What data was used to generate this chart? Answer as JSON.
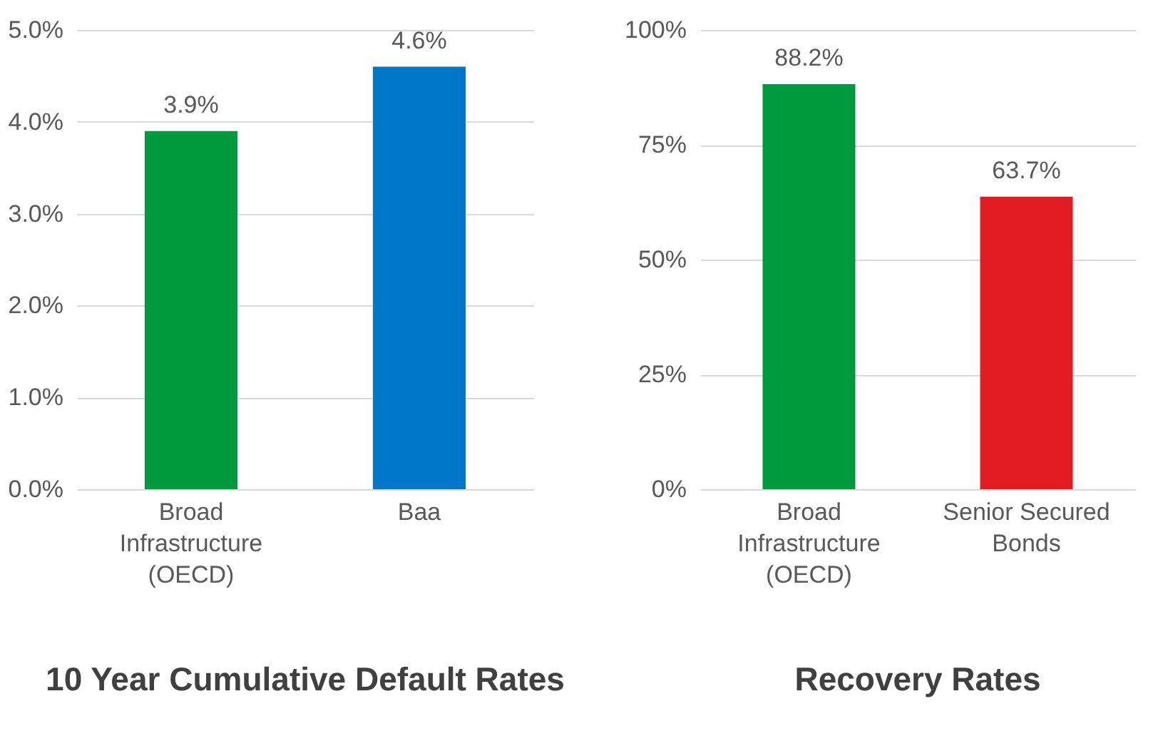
{
  "chart_data": [
    {
      "type": "bar",
      "title": "10 Year Cumulative Default Rates",
      "categories": [
        "Broad\nInfrastructure\n(OECD)",
        "Baa"
      ],
      "values": [
        3.9,
        4.6
      ],
      "colors": [
        "#009a3e",
        "#0077c8"
      ],
      "ylim": [
        0,
        5
      ],
      "yticks": [
        {
          "value": 0,
          "label": "0.0%"
        },
        {
          "value": 1,
          "label": "1.0%"
        },
        {
          "value": 2,
          "label": "2.0%"
        },
        {
          "value": 3,
          "label": "3.0%"
        },
        {
          "value": 4,
          "label": "4.0%"
        },
        {
          "value": 5,
          "label": "5.0%"
        }
      ],
      "value_labels": [
        "3.9%",
        "4.6%"
      ],
      "grid": "y"
    },
    {
      "type": "bar",
      "title": "Recovery Rates",
      "categories": [
        "Broad\nInfrastructure\n(OECD)",
        "Senior Secured\nBonds"
      ],
      "values": [
        88.2,
        63.7
      ],
      "colors": [
        "#009a3e",
        "#e31b23"
      ],
      "ylim": [
        0,
        100
      ],
      "yticks": [
        {
          "value": 0,
          "label": "0%"
        },
        {
          "value": 25,
          "label": "25%"
        },
        {
          "value": 50,
          "label": "50%"
        },
        {
          "value": 75,
          "label": "75%"
        },
        {
          "value": 100,
          "label": "100%"
        }
      ],
      "value_labels": [
        "88.2%",
        "63.7%"
      ],
      "grid": "y"
    }
  ]
}
